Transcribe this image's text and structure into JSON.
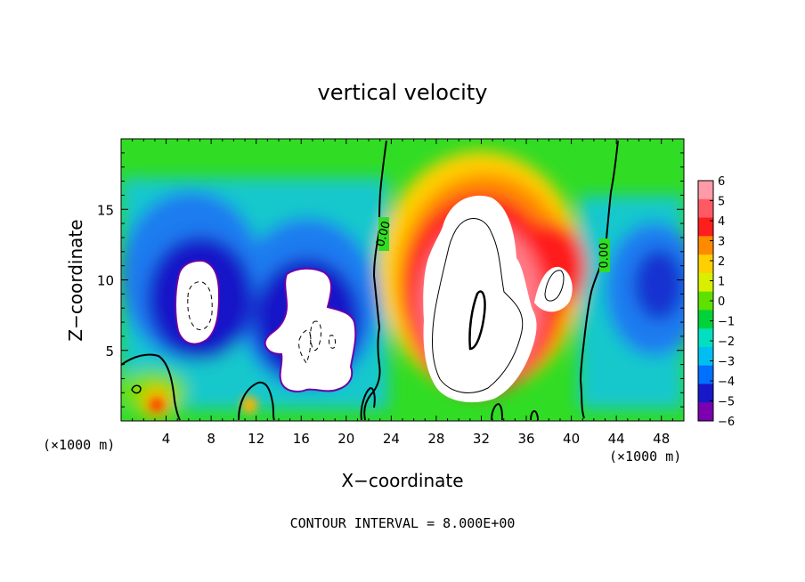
{
  "chart_data": {
    "type": "heatmap",
    "title": "vertical velocity",
    "xlabel": "X−coordinate",
    "ylabel": "Z−coordinate",
    "x_unit": "(×1000 m)",
    "xlim": [
      0,
      50
    ],
    "ylim": [
      0,
      20
    ],
    "x_ticks": [
      4,
      8,
      12,
      16,
      20,
      24,
      28,
      32,
      36,
      40,
      44,
      48
    ],
    "x_tick_labels": [
      "4",
      "8",
      "12",
      "16",
      "20",
      "24",
      "28",
      "32",
      "36",
      "40",
      "44",
      "48"
    ],
    "y_ticks": [
      5,
      10,
      15
    ],
    "y_tick_labels": [
      "5",
      "10",
      "15"
    ],
    "colorbar_ticks": [
      6,
      5,
      4,
      3,
      2,
      1,
      0,
      -1,
      -2,
      -3,
      -4,
      -5,
      -6
    ],
    "colorbar_tick_labels": [
      "6",
      "5",
      "4",
      "3",
      "2",
      "1",
      "0",
      "−1",
      "−2",
      "−3",
      "−4",
      "−5",
      "−6"
    ],
    "colorbar_colors": [
      "#ff9aa8",
      "#ff5a64",
      "#ff1e1e",
      "#ff8a00",
      "#ffcf00",
      "#d8f000",
      "#5ee000",
      "#00d23a",
      "#00e0c0",
      "#00bef2",
      "#0070ff",
      "#1818c8",
      "#7a00b0"
    ],
    "contour_labels": [
      {
        "text": "0.00",
        "x": 23.4,
        "y": 12.8
      },
      {
        "text": "0.00",
        "x": 42.8,
        "y": 11.3
      }
    ],
    "features": [
      {
        "name": "updraft core",
        "x": 31,
        "y": 9,
        "w_max": "> 6"
      },
      {
        "name": "downdraft core left",
        "x": 7,
        "y": 8.5,
        "w_min": "< -6"
      },
      {
        "name": "downdraft core center",
        "x": 17,
        "y": 6.5,
        "w_min": "< -6"
      }
    ],
    "footnote": "CONTOUR INTERVAL = 8.000E+00"
  }
}
